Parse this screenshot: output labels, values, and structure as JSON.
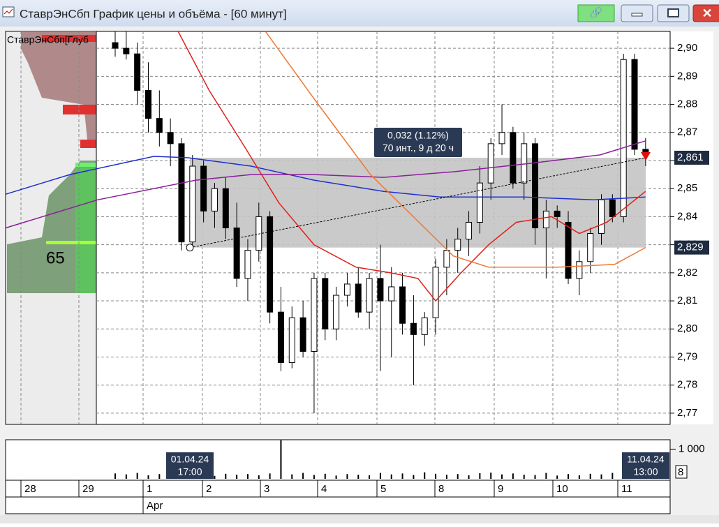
{
  "window": {
    "title": "СтаврЭнСбп График цены и объёма - [60 минут]"
  },
  "chart_data": {
    "type": "candlestick",
    "panel_label": "СтаврЭнСбп[Глуб",
    "profile_label": "65",
    "ylim": [
      2.766,
      2.906
    ],
    "yticks": [
      {
        "value": 2.9,
        "label": "2,90"
      },
      {
        "value": 2.89,
        "label": "2,89"
      },
      {
        "value": 2.88,
        "label": "2,88"
      },
      {
        "value": 2.87,
        "label": "2,87"
      },
      {
        "value": 2.86,
        "label": "2,86"
      },
      {
        "value": 2.85,
        "label": "2,85"
      },
      {
        "value": 2.84,
        "label": "2,84"
      },
      {
        "value": 2.83,
        "label": "2,83"
      },
      {
        "value": 2.82,
        "label": "2,82"
      },
      {
        "value": 2.81,
        "label": "2,81"
      },
      {
        "value": 2.8,
        "label": "2,80"
      },
      {
        "value": 2.79,
        "label": "2,79"
      },
      {
        "value": 2.78,
        "label": "2,78"
      },
      {
        "value": 2.77,
        "label": "2,77"
      }
    ],
    "grid": true,
    "open": [
      2.902,
      2.9,
      2.898,
      2.885,
      2.875,
      2.87,
      2.866,
      2.831,
      2.858,
      2.842,
      2.85,
      2.836,
      2.818,
      2.828,
      2.84,
      2.806,
      2.788,
      2.804,
      2.792,
      2.818,
      2.8,
      2.812,
      2.816,
      2.806,
      2.818,
      2.81,
      2.815,
      2.802,
      2.798,
      2.804,
      2.822,
      2.828,
      2.832,
      2.838,
      2.852,
      2.866,
      2.87,
      2.852,
      2.866,
      2.836,
      2.842,
      2.838,
      2.818,
      2.824,
      2.834,
      2.846,
      2.84,
      2.896,
      2.864
    ],
    "high": [
      2.906,
      2.906,
      2.902,
      2.895,
      2.885,
      2.875,
      2.868,
      2.862,
      2.86,
      2.852,
      2.854,
      2.845,
      2.832,
      2.845,
      2.842,
      2.815,
      2.808,
      2.81,
      2.82,
      2.82,
      2.815,
      2.82,
      2.822,
      2.82,
      2.83,
      2.822,
      2.82,
      2.812,
      2.806,
      2.825,
      2.832,
      2.836,
      2.842,
      2.858,
      2.868,
      2.88,
      2.872,
      2.87,
      2.868,
      2.846,
      2.844,
      2.842,
      2.828,
      2.836,
      2.848,
      2.848,
      2.898,
      2.898,
      2.868
    ],
    "low": [
      2.897,
      2.896,
      2.88,
      2.87,
      2.865,
      2.858,
      2.828,
      2.828,
      2.838,
      2.836,
      2.832,
      2.815,
      2.81,
      2.824,
      2.802,
      2.785,
      2.786,
      2.79,
      2.77,
      2.796,
      2.796,
      2.808,
      2.804,
      2.8,
      2.785,
      2.79,
      2.798,
      2.78,
      2.794,
      2.798,
      2.812,
      2.82,
      2.826,
      2.834,
      2.846,
      2.862,
      2.85,
      2.846,
      2.83,
      2.818,
      2.836,
      2.816,
      2.812,
      2.82,
      2.83,
      2.838,
      2.838,
      2.862,
      2.858
    ],
    "close": [
      2.9,
      2.898,
      2.885,
      2.875,
      2.87,
      2.866,
      2.831,
      2.858,
      2.842,
      2.85,
      2.836,
      2.818,
      2.828,
      2.84,
      2.806,
      2.788,
      2.804,
      2.792,
      2.818,
      2.8,
      2.812,
      2.816,
      2.806,
      2.818,
      2.81,
      2.815,
      2.802,
      2.798,
      2.804,
      2.822,
      2.828,
      2.832,
      2.838,
      2.852,
      2.866,
      2.87,
      2.852,
      2.866,
      2.836,
      2.842,
      2.84,
      2.818,
      2.824,
      2.834,
      2.846,
      2.84,
      2.896,
      2.864,
      2.862
    ],
    "lines": [
      {
        "color": "#1f2fd0",
        "x": [
          -9.9,
          -4.1,
          3.5,
          6.6,
          12.3,
          18,
          24.3,
          29.4,
          37,
          43.3,
          48
        ],
        "values": [
          2.848,
          2.855,
          2.8615,
          2.861,
          2.858,
          2.853,
          2.849,
          2.847,
          2.847,
          2.846,
          2.847
        ]
      },
      {
        "color": "#8a1f9a",
        "x": [
          -9.9,
          -1.6,
          7.3,
          12.3,
          18,
          24.3,
          30.6,
          37.6,
          43.9,
          48
        ],
        "values": [
          2.836,
          2.846,
          2.853,
          2.855,
          2.855,
          2.854,
          2.856,
          2.859,
          2.862,
          2.867
        ]
      },
      {
        "color": "#e0201a",
        "x": [
          5.7,
          8.5,
          11.7,
          14.8,
          18,
          21.8,
          24.9,
          27.4,
          29,
          31.3,
          33.8,
          36.3,
          39.5,
          42,
          44.5,
          48
        ],
        "values": [
          2.906,
          2.885,
          2.865,
          2.845,
          2.83,
          2.822,
          2.82,
          2.818,
          2.81,
          2.82,
          2.83,
          2.838,
          2.84,
          2.834,
          2.838,
          2.849
        ]
      },
      {
        "color": "#f07830",
        "x": [
          13.6,
          18,
          23.1,
          27.5,
          30.6,
          33.8,
          40.1,
          45.2,
          48
        ],
        "values": [
          2.906,
          2.882,
          2.855,
          2.838,
          2.826,
          2.822,
          2.822,
          2.823,
          2.829
        ]
      }
    ],
    "price_labels": [
      {
        "value": 2.861,
        "label": "2,861"
      },
      {
        "value": 2.829,
        "label": "2,829"
      }
    ],
    "tooltip": [
      "0,032 (1.12%)",
      "70 инт., 9 д 20 ч"
    ],
    "volume": {
      "values": [
        180,
        150,
        200,
        120,
        160,
        140,
        220,
        130,
        150,
        100,
        170,
        140,
        160,
        120,
        180,
        1300,
        150,
        200,
        130,
        170,
        110,
        160,
        140,
        120,
        200,
        150,
        180,
        130,
        220,
        170,
        140,
        160,
        120,
        190,
        210,
        150,
        180,
        140,
        130,
        200,
        110,
        160,
        120,
        170,
        150,
        200,
        220,
        160,
        230
      ],
      "ylim": [
        0,
        1316
      ],
      "yticks": [
        {
          "value": 1000,
          "label": "1 000"
        }
      ],
      "scale_label": "8"
    },
    "dates": [
      "28",
      "29",
      "1",
      "2",
      "3",
      "4",
      "5",
      "8",
      "9",
      "10",
      "11"
    ],
    "month": "Apr",
    "crosshair_labels": [
      [
        "01.04.24",
        "17:00"
      ],
      [
        "11.04.24",
        "13:00"
      ]
    ]
  }
}
